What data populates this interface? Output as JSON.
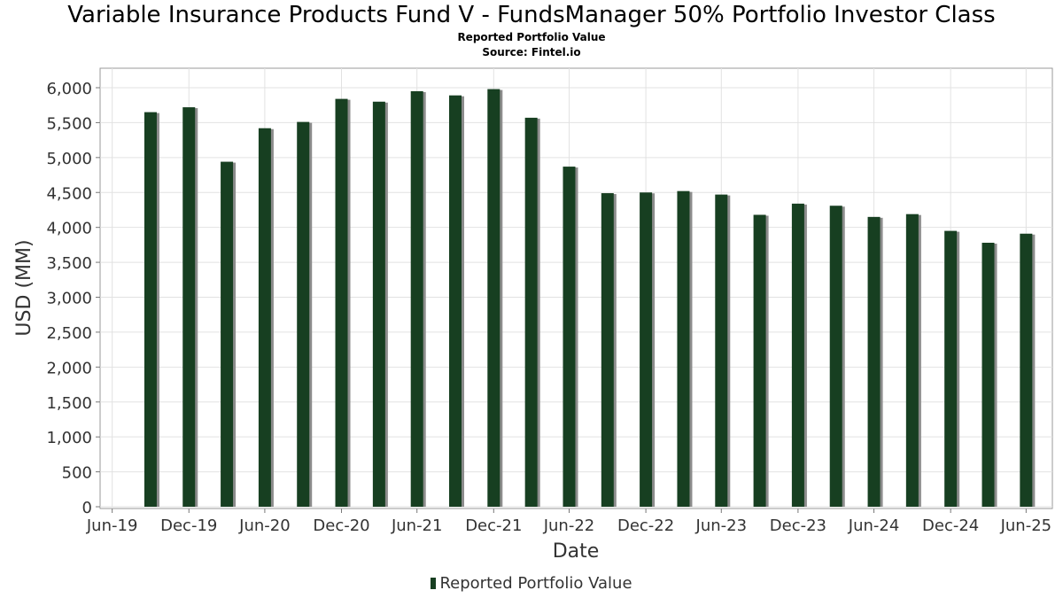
{
  "chart_data": {
    "type": "bar",
    "title": "Variable Insurance Products Fund V - FundsManager 50% Portfolio Investor Class",
    "subtitle": "Reported Portfolio Value",
    "source": "Source: Fintel.io",
    "xlabel": "Date",
    "ylabel": "USD (MM)",
    "ylim": [
      0,
      6000
    ],
    "y_ticks": [
      0,
      500,
      1000,
      1500,
      2000,
      2500,
      3000,
      3500,
      4000,
      4500,
      5000,
      5500,
      6000
    ],
    "y_tick_labels": [
      "0",
      "500",
      "1,000",
      "1,500",
      "2,000",
      "2,500",
      "3,000",
      "3,500",
      "4,000",
      "4,500",
      "5,000",
      "5,500",
      "6,000"
    ],
    "x_range": [
      "2019-06-01",
      "2025-09-01"
    ],
    "x_ticks": [
      {
        "label": "Jun-19",
        "date": "2019-06-30"
      },
      {
        "label": "Dec-19",
        "date": "2019-12-31"
      },
      {
        "label": "Jun-20",
        "date": "2020-06-30"
      },
      {
        "label": "Dec-20",
        "date": "2020-12-31"
      },
      {
        "label": "Jun-21",
        "date": "2021-06-30"
      },
      {
        "label": "Dec-21",
        "date": "2021-12-31"
      },
      {
        "label": "Jun-22",
        "date": "2022-06-30"
      },
      {
        "label": "Dec-22",
        "date": "2022-12-31"
      },
      {
        "label": "Jun-23",
        "date": "2023-06-30"
      },
      {
        "label": "Dec-23",
        "date": "2023-12-31"
      },
      {
        "label": "Jun-24",
        "date": "2024-06-30"
      },
      {
        "label": "Dec-24",
        "date": "2024-12-31"
      },
      {
        "label": "Jun-25",
        "date": "2025-06-30"
      }
    ],
    "grid": true,
    "legend_position": "bottom",
    "series": [
      {
        "name": "Reported Portfolio Value",
        "color": "#173f21",
        "points": [
          {
            "date": "2019-09-30",
            "value": 5650
          },
          {
            "date": "2019-12-31",
            "value": 5720
          },
          {
            "date": "2020-03-31",
            "value": 4940
          },
          {
            "date": "2020-06-30",
            "value": 5420
          },
          {
            "date": "2020-09-30",
            "value": 5510
          },
          {
            "date": "2020-12-31",
            "value": 5840
          },
          {
            "date": "2021-03-31",
            "value": 5800
          },
          {
            "date": "2021-06-30",
            "value": 5950
          },
          {
            "date": "2021-09-30",
            "value": 5890
          },
          {
            "date": "2021-12-31",
            "value": 5980
          },
          {
            "date": "2022-03-31",
            "value": 5570
          },
          {
            "date": "2022-06-30",
            "value": 4870
          },
          {
            "date": "2022-09-30",
            "value": 4490
          },
          {
            "date": "2022-12-31",
            "value": 4500
          },
          {
            "date": "2023-03-31",
            "value": 4520
          },
          {
            "date": "2023-06-30",
            "value": 4470
          },
          {
            "date": "2023-09-30",
            "value": 4180
          },
          {
            "date": "2023-12-31",
            "value": 4340
          },
          {
            "date": "2024-03-31",
            "value": 4310
          },
          {
            "date": "2024-06-30",
            "value": 4150
          },
          {
            "date": "2024-09-30",
            "value": 4190
          },
          {
            "date": "2024-12-31",
            "value": 3950
          },
          {
            "date": "2025-03-31",
            "value": 3780
          },
          {
            "date": "2025-06-30",
            "value": 3910
          }
        ]
      }
    ]
  }
}
